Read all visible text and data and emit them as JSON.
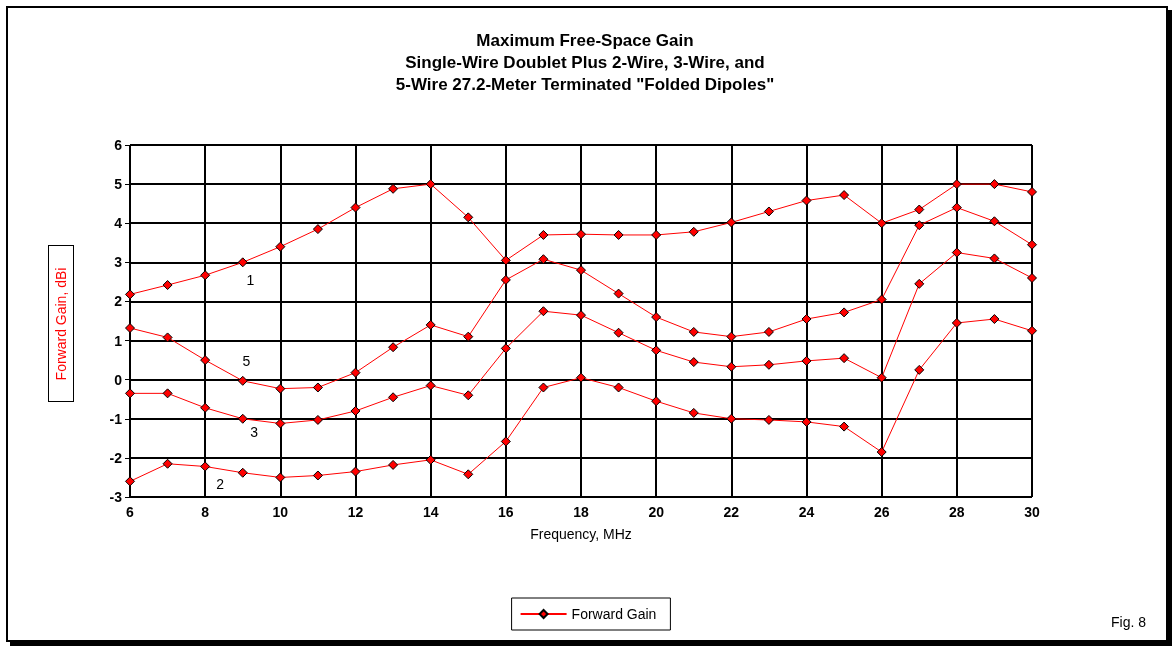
{
  "chart_data": {
    "type": "line",
    "title": "Maximum Free-Space Gain\nSingle-Wire Doublet Plus 2-Wire, 3-Wire, and\n5-Wire 27.2-Meter Terminated \"Folded Dipoles\"",
    "xlabel": "Frequency, MHz",
    "ylabel": "Forward Gain, dBi",
    "x": [
      6,
      7,
      8,
      9,
      10,
      11,
      12,
      13,
      14,
      15,
      16,
      17,
      18,
      19,
      20,
      21,
      22,
      23,
      24,
      25,
      26,
      27,
      28,
      29,
      30
    ],
    "series": [
      {
        "name": "Forward Gain",
        "color": "#ff0000",
        "values": [
          2.18,
          2.42,
          2.67,
          3.0,
          3.4,
          3.85,
          4.4,
          4.88,
          5.0,
          4.15,
          3.05,
          3.7,
          3.72,
          3.7,
          3.7,
          3.78,
          4.02,
          4.3,
          4.58,
          4.72,
          4.0,
          4.35,
          5.0,
          5.0,
          4.8
        ]
      },
      {
        "color": "#ff0000",
        "values": [
          1.32,
          1.08,
          0.5,
          -0.03,
          -0.23,
          -0.2,
          0.18,
          0.83,
          1.4,
          1.1,
          2.55,
          3.08,
          2.8,
          2.2,
          1.6,
          1.22,
          1.1,
          1.22,
          1.55,
          1.72,
          2.05,
          3.95,
          4.4,
          4.05,
          3.45
        ]
      },
      {
        "color": "#ff0000",
        "values": [
          -0.35,
          -0.35,
          -0.72,
          -1.0,
          -1.12,
          -1.03,
          -0.8,
          -0.45,
          -0.15,
          -0.4,
          0.8,
          1.75,
          1.65,
          1.2,
          0.75,
          0.45,
          0.33,
          0.38,
          0.48,
          0.55,
          0.05,
          2.45,
          3.25,
          3.1,
          2.6
        ]
      },
      {
        "color": "#ff0000",
        "values": [
          -2.6,
          -2.15,
          -2.22,
          -2.38,
          -2.5,
          -2.45,
          -2.35,
          -2.18,
          -2.05,
          -2.42,
          -1.58,
          -0.2,
          0.05,
          -0.2,
          -0.55,
          -0.85,
          -1.0,
          -1.03,
          -1.08,
          -1.2,
          -1.85,
          0.25,
          1.45,
          1.55,
          1.25
        ]
      }
    ],
    "annotations": [
      "1",
      "5",
      "3",
      "2",
      "Fig. 8"
    ],
    "xlim": [
      6,
      30
    ],
    "xticks": [
      6,
      8,
      10,
      12,
      14,
      16,
      18,
      20,
      22,
      24,
      26,
      28,
      30
    ],
    "ylim": [
      -3,
      6
    ],
    "yticks": [
      -3,
      -2,
      -1,
      0,
      1,
      2,
      3,
      4,
      5,
      6
    ],
    "grid": true,
    "legend": "bottom",
    "marker": "diamond",
    "line_style": "solid"
  }
}
